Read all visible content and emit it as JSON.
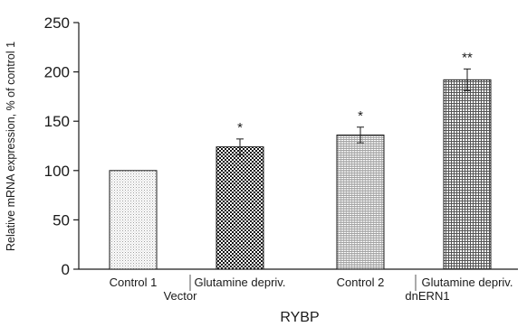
{
  "chart_data": {
    "type": "bar",
    "title": "",
    "xlabel": "RYBP",
    "ylabel": "Relative mRNA expression, % of control 1",
    "ylim": [
      0,
      250
    ],
    "yticks": [
      0,
      50,
      100,
      150,
      200,
      250
    ],
    "categories": [
      "Control 1",
      "Glutamine depriv.",
      "Control 2",
      "Glutamine depriv."
    ],
    "values": [
      100,
      124,
      136,
      192
    ],
    "errors": [
      0,
      8,
      8,
      11
    ],
    "annotations": [
      "",
      "*",
      "*",
      "**"
    ],
    "groups": [
      {
        "label": "Vector",
        "members": [
          0,
          1
        ]
      },
      {
        "label": "dnERN1",
        "members": [
          2,
          3
        ]
      }
    ],
    "bar_patterns": [
      "fine-dots",
      "dense-dots",
      "fine-lines",
      "grid"
    ],
    "grid": false,
    "legend": "none"
  }
}
